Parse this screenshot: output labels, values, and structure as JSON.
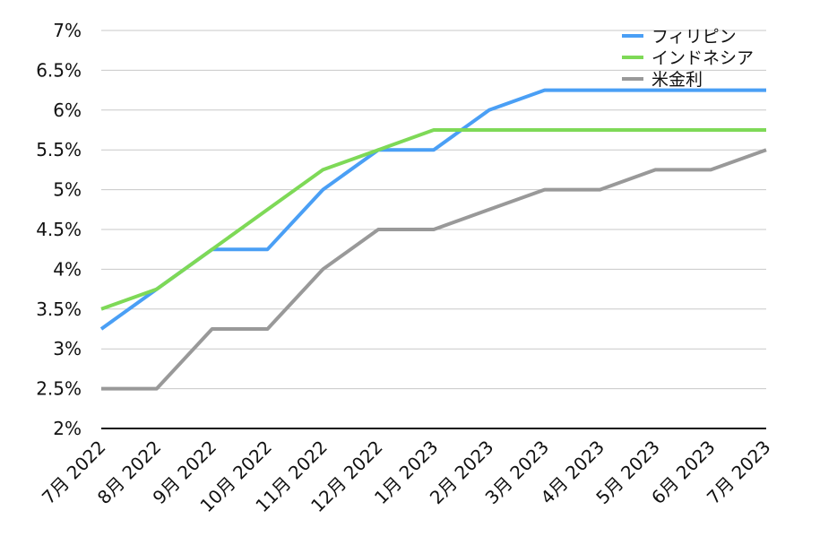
{
  "chart_data": {
    "type": "line",
    "title": "",
    "xlabel": "",
    "ylabel": "",
    "ylim": [
      2,
      7
    ],
    "yticks": [
      "2%",
      "2.5%",
      "3%",
      "3.5%",
      "4%",
      "4.5%",
      "5%",
      "5.5%",
      "6%",
      "6.5%",
      "7%"
    ],
    "categories": [
      "7月 2022",
      "8月 2022",
      "9月 2022",
      "10月 2022",
      "11月 2022",
      "12月 2022",
      "1月 2023",
      "2月 2023",
      "3月 2023",
      "4月 2023",
      "5月 2023",
      "6月 2023",
      "7月 2023"
    ],
    "grid": true,
    "legend": "top-right",
    "series": [
      {
        "name": "フィリピン",
        "color": "#4a9ff5",
        "values": [
          3.25,
          3.75,
          4.25,
          4.25,
          5.0,
          5.5,
          5.5,
          6.0,
          6.25,
          6.25,
          6.25,
          6.25,
          6.25
        ]
      },
      {
        "name": "インドネシア",
        "color": "#7ed957",
        "values": [
          3.5,
          3.75,
          4.25,
          4.75,
          5.25,
          5.5,
          5.75,
          5.75,
          5.75,
          5.75,
          5.75,
          5.75,
          5.75
        ]
      },
      {
        "name": "米金利",
        "color": "#999999",
        "values": [
          2.5,
          2.5,
          3.25,
          3.25,
          4.0,
          4.5,
          4.5,
          4.75,
          5.0,
          5.0,
          5.25,
          5.25,
          5.5
        ]
      }
    ]
  }
}
